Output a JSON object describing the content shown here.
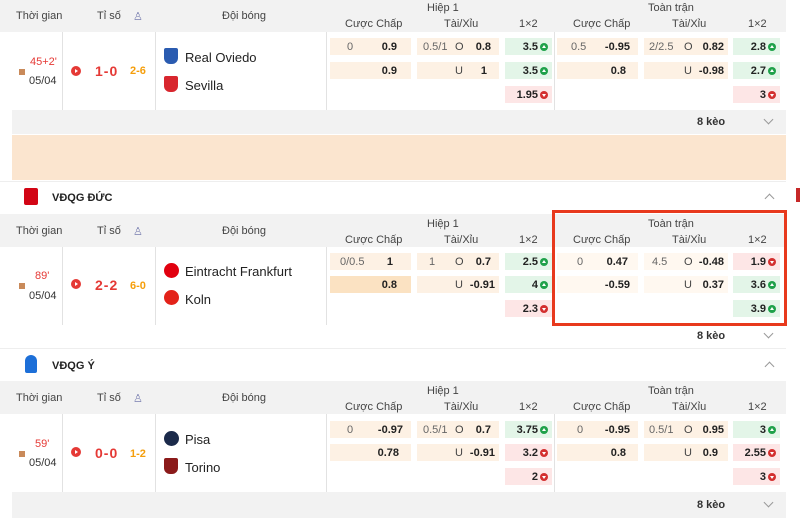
{
  "headers": {
    "time": "Thời gian",
    "score": "Tỉ số",
    "teams": "Đội bóng",
    "half": "Hiệp 1",
    "full": "Toàn trận",
    "handicap": "Cược Chấp",
    "ou": "Tài/Xỉu",
    "x12": "1×2"
  },
  "matches": [
    {
      "time": "45+2'",
      "date": "05/04",
      "home": "Real Oviedo",
      "away": "Sevilla",
      "score": "1-0",
      "corners": "2-6",
      "h1": {
        "hc": [
          "0",
          "0.9",
          "",
          "0.9"
        ],
        "ou": [
          "0.5/1",
          "O",
          "0.8",
          "U",
          "1"
        ],
        "x": [
          "3.5",
          "3.5",
          "1.95"
        ]
      },
      "ft": {
        "hc": [
          "0.5",
          "-0.95",
          "",
          "0.8"
        ],
        "ou": [
          "2/2.5",
          "O",
          "0.82",
          "U",
          "-0.98"
        ],
        "x": [
          "2.8",
          "2.7",
          "3"
        ]
      },
      "keo": "8 kèo"
    },
    {
      "time": "89'",
      "date": "05/04",
      "home": "Eintracht Frankfurt",
      "away": "Koln",
      "score": "2-2",
      "corners": "6-0",
      "h1": {
        "hc": [
          "0/0.5",
          "1",
          "",
          "0.8"
        ],
        "ou": [
          "1",
          "O",
          "0.7",
          "U",
          "-0.91"
        ],
        "x": [
          "2.5",
          "4",
          "2.3"
        ]
      },
      "ft": {
        "hc": [
          "0",
          "0.47",
          "",
          "-0.59"
        ],
        "ou": [
          "4.5",
          "O",
          "-0.48",
          "U",
          "0.37"
        ],
        "x": [
          "1.9",
          "3.6",
          "3.9"
        ]
      },
      "keo": "8 kèo"
    },
    {
      "time": "59'",
      "date": "05/04",
      "home": "Pisa",
      "away": "Torino",
      "score": "0-0",
      "corners": "1-2",
      "h1": {
        "hc": [
          "0",
          "-0.97",
          "",
          "0.78"
        ],
        "ou": [
          "0.5/1",
          "O",
          "0.7",
          "U",
          "-0.91"
        ],
        "x": [
          "3.75",
          "3.2",
          "2"
        ]
      },
      "ft": {
        "hc": [
          "0",
          "-0.95",
          "",
          "0.8"
        ],
        "ou": [
          "0.5/1",
          "O",
          "0.95",
          "U",
          "0.9"
        ],
        "x": [
          "3",
          "2.55",
          "3"
        ]
      },
      "keo": "8 kèo"
    }
  ],
  "leagues": {
    "germany": "VĐQG ĐỨC",
    "italy": "VĐQG Ý"
  },
  "colors": {
    "accent": "#e53935",
    "highlight_border": "#e8391d",
    "green": "#1fa14a",
    "red": "#d32f2f"
  }
}
